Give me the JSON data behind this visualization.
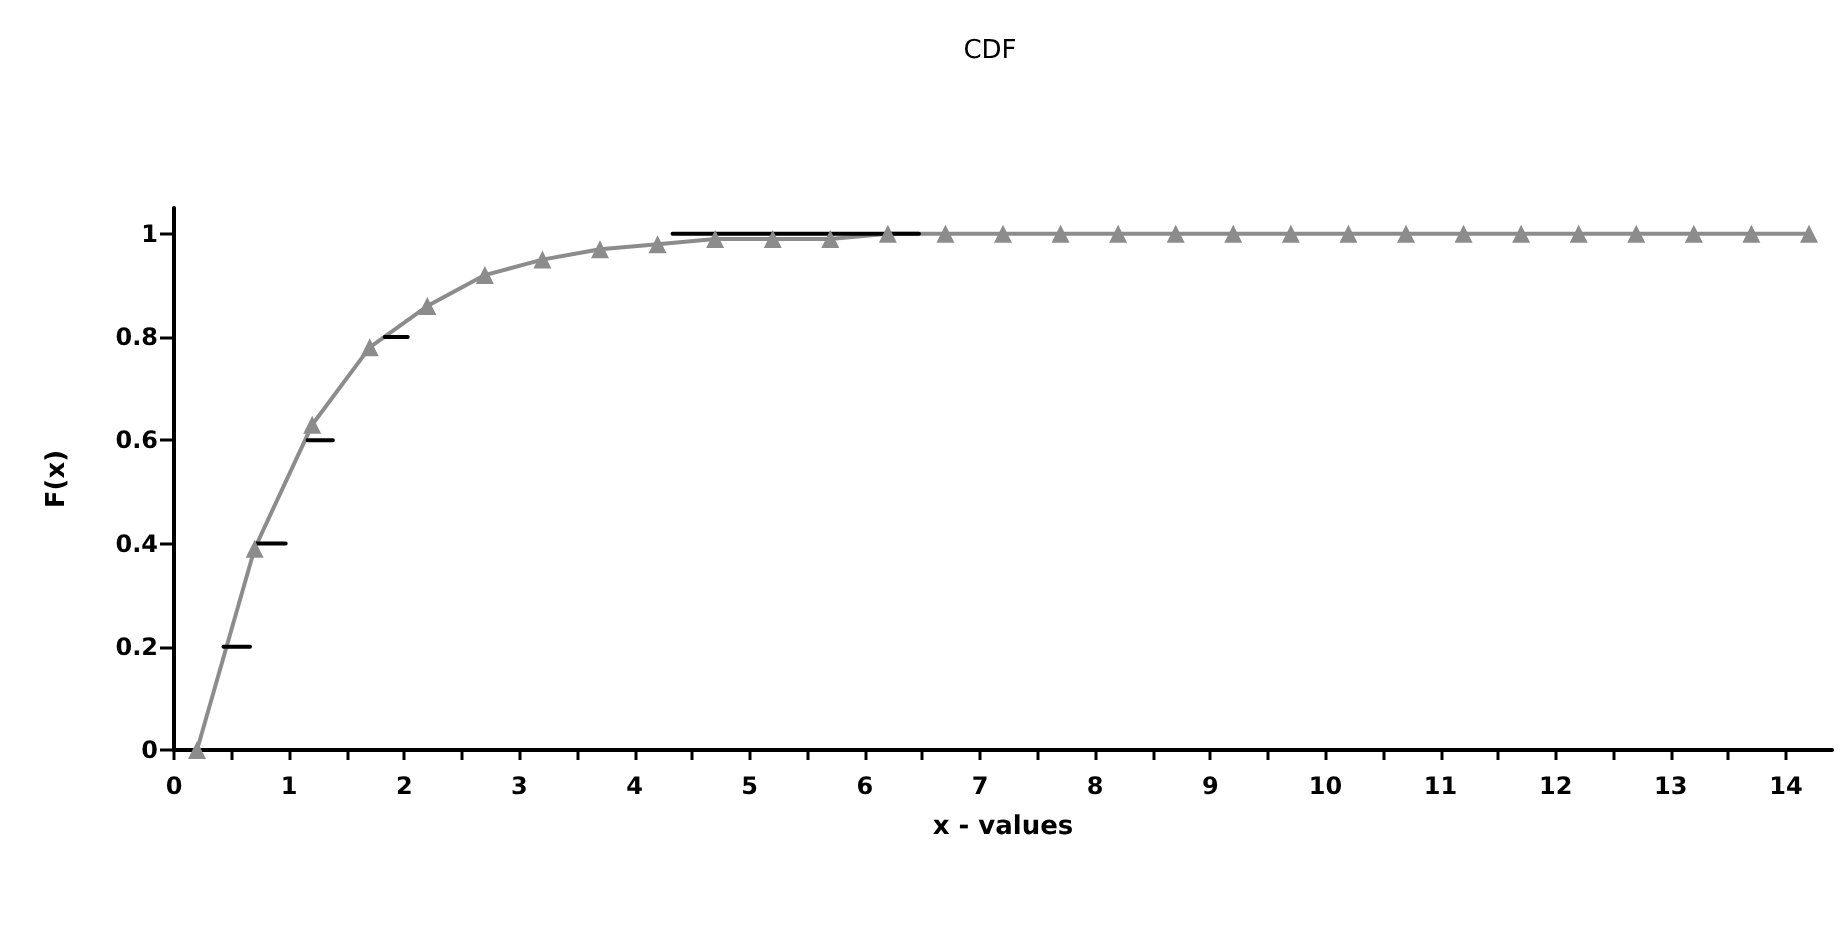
{
  "chart_data": {
    "type": "line",
    "title": "CDF",
    "xlabel": "x - values",
    "ylabel": "F(x)",
    "xlim": [
      0,
      14.4
    ],
    "ylim": [
      0,
      1.05
    ],
    "xticks": [
      0,
      {
        "value": 0.5,
        "label": null
      },
      1,
      {
        "value": 1.5,
        "label": null
      },
      2,
      {
        "value": 2.5,
        "label": null
      },
      3,
      {
        "value": 3.5,
        "label": null
      },
      4,
      {
        "value": 4.5,
        "label": null
      },
      5,
      {
        "value": 5.5,
        "label": null
      },
      6,
      {
        "value": 6.5,
        "label": null
      },
      7,
      {
        "value": 7.5,
        "label": null
      },
      8,
      {
        "value": 8.5,
        "label": null
      },
      9,
      {
        "value": 9.5,
        "label": null
      },
      10,
      {
        "value": 10.5,
        "label": null
      },
      11,
      {
        "value": 11.5,
        "label": null
      },
      12,
      {
        "value": 12.5,
        "label": null
      },
      13,
      {
        "value": 13.5,
        "label": null
      },
      14
    ],
    "yticks": [
      0,
      0.2,
      0.4,
      0.6,
      0.8,
      1
    ],
    "grid": false,
    "series": [
      {
        "color": "#8c8c8c",
        "marker": "triangle",
        "x": [
          0.2,
          0.7,
          1.2,
          1.7,
          2.2,
          2.7,
          3.2,
          3.7,
          4.2,
          4.7,
          5.2,
          5.7,
          6.2,
          6.7,
          7.2,
          7.7,
          8.2,
          8.7,
          9.2,
          9.7,
          10.2,
          10.7,
          11.2,
          11.7,
          12.2,
          12.7,
          13.2,
          13.7,
          14.2
        ],
        "values": [
          0,
          0.39,
          0.63,
          0.78,
          0.86,
          0.92,
          0.95,
          0.97,
          0.98,
          0.99,
          0.99,
          0.99,
          1,
          1,
          1,
          1,
          1,
          1,
          1,
          1,
          1,
          1,
          1,
          1,
          1,
          1,
          1,
          1,
          1
        ]
      },
      {
        "color": "#000000",
        "marker": "none",
        "x": [
          0.43,
          0.66,
          0.68,
          0.71,
          0.97,
          1.0,
          1.16,
          1.38,
          1.5,
          1.83,
          2.03,
          2.2,
          4.33,
          6.47
        ],
        "values": [
          0.2,
          0.2,
          null,
          0.4,
          0.4,
          null,
          0.6,
          0.6,
          null,
          0.8,
          0.8,
          null,
          1,
          1
        ]
      }
    ]
  }
}
